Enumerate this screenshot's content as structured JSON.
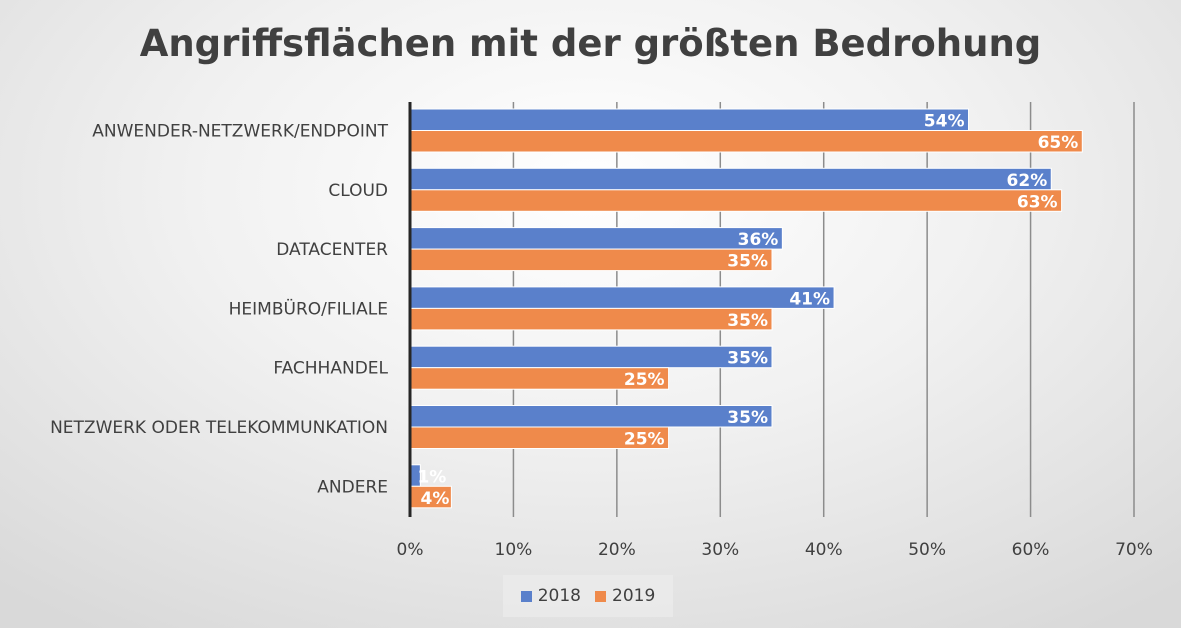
{
  "chart_data": {
    "type": "bar",
    "orientation": "horizontal",
    "title": "Angriffsflächen mit der größten Bedrohung",
    "categories": [
      "ANWENDER-NETZWERK/ENDPOINT",
      "CLOUD",
      "DATACENTER",
      "HEIMBÜRO/FILIALE",
      "FACHHANDEL",
      "NETZWERK ODER TELEKOMMUNKATION",
      "ANDERE"
    ],
    "series": [
      {
        "name": "2018",
        "color": "#5a80cb",
        "values": [
          54,
          62,
          36,
          41,
          35,
          35,
          1
        ]
      },
      {
        "name": "2019",
        "color": "#ef8a4b",
        "values": [
          65,
          63,
          35,
          35,
          25,
          25,
          4
        ]
      }
    ],
    "xlim": [
      0,
      70
    ],
    "xticks": [
      "0%",
      "10%",
      "20%",
      "30%",
      "40%",
      "50%",
      "60%",
      "70%"
    ],
    "grid": true,
    "legend": "bottom",
    "value_format": "percent"
  }
}
